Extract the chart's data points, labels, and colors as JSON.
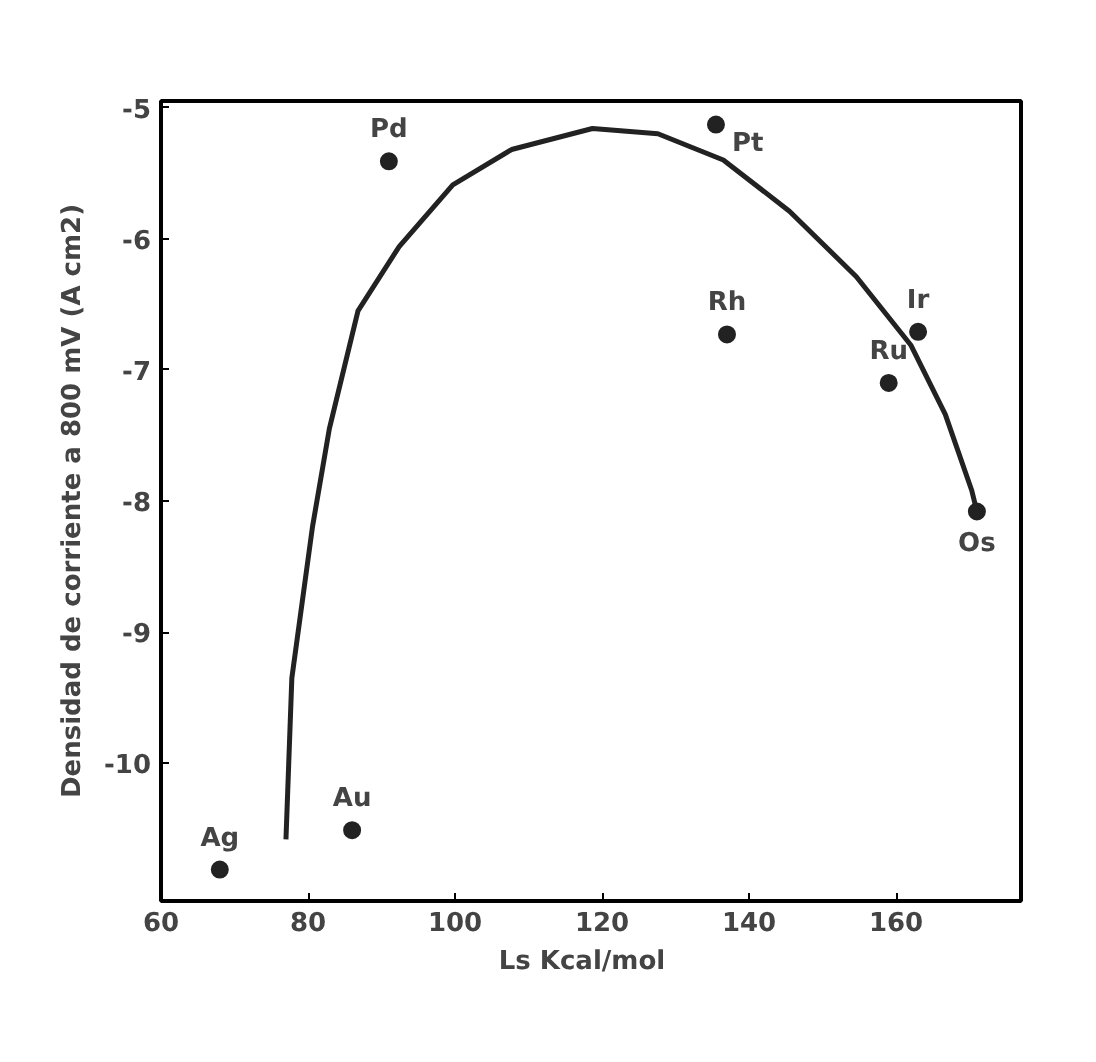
{
  "chart_data": {
    "type": "scatter",
    "xlabel": "Ls   Kcal/mol",
    "ylabel": "Densidad de corriente a 800 mV (A cm2)",
    "xlim": [
      60,
      177
    ],
    "ylim": [
      -11.05,
      -4.95
    ],
    "xticks": [
      60,
      80,
      100,
      120,
      140,
      160
    ],
    "yticks": [
      -5,
      -6,
      -7,
      -8,
      -9,
      -10
    ],
    "grid": false,
    "series": [
      {
        "type": "scatter",
        "marker": "circle",
        "color": "#222222",
        "x": [
          91,
          135.5,
          137,
          163,
          159,
          171,
          68,
          86
        ],
        "values": [
          -5.41,
          -5.13,
          -6.73,
          -6.71,
          -7.1,
          -8.08,
          -10.81,
          -10.51
        ]
      },
      {
        "type": "line",
        "color": "#222222",
        "line_style": "solid",
        "x": [
          77,
          77.8,
          80.6,
          82.9,
          86.8,
          92.4,
          99.7,
          107.7,
          118.7,
          127.6,
          136.5,
          145.5,
          154.6,
          162,
          166.7,
          170.3,
          171
        ],
        "values": [
          -10.58,
          -9.35,
          -8.2,
          -7.45,
          -6.55,
          -6.06,
          -5.59,
          -5.32,
          -5.16,
          -5.2,
          -5.4,
          -5.79,
          -6.29,
          -6.81,
          -7.34,
          -7.92,
          -8.08
        ]
      }
    ],
    "annotations": [
      {
        "text": "Pd",
        "x": 91,
        "y": -5.41
      },
      {
        "text": "Pt",
        "x": 135.5,
        "y": -5.13
      },
      {
        "text": "Rh",
        "x": 137,
        "y": -6.73
      },
      {
        "text": "Ir",
        "x": 163,
        "y": -6.71
      },
      {
        "text": "Ru",
        "x": 159,
        "y": -7.1
      },
      {
        "text": "Os",
        "x": 171,
        "y": -8.08
      },
      {
        "text": "Ag",
        "x": 68,
        "y": -10.81
      },
      {
        "text": "Au",
        "x": 86,
        "y": -10.51
      }
    ]
  }
}
